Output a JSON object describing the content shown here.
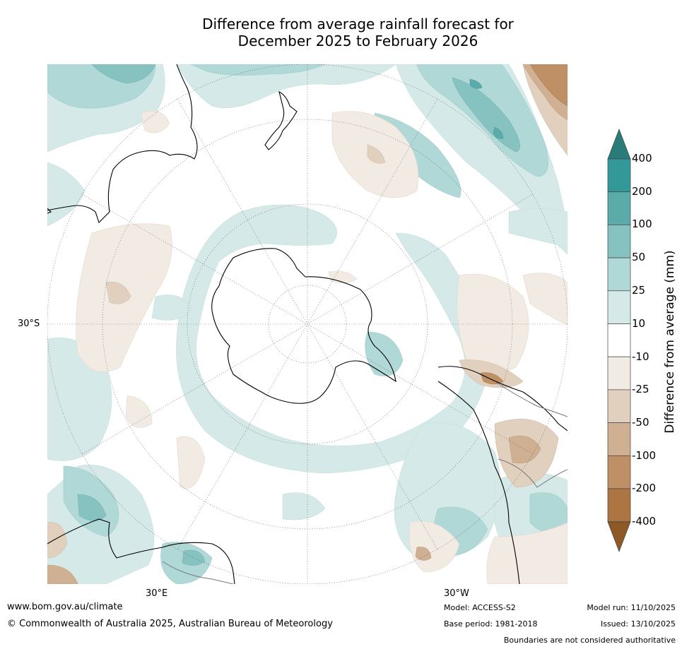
{
  "title": {
    "line1": "Difference from average rainfall forecast for",
    "line2": "December 2025 to February 2026"
  },
  "map": {
    "projection": "south-polar-stereographic",
    "lat_label": "30°S",
    "lon_labels": {
      "east": "30°E",
      "west": "30°W"
    }
  },
  "colorbar": {
    "title": "Difference from average (mm)",
    "ticks": [
      "400",
      "200",
      "100",
      "50",
      "25",
      "10",
      "-10",
      "-25",
      "-50",
      "-100",
      "-200",
      "-400"
    ],
    "colors": {
      "above_400": "#2a7c7b",
      "c200_400": "#339998",
      "c100_200": "#5aabaa",
      "c50_100": "#86c2c0",
      "c25_50": "#b0d8d6",
      "c10_25": "#d5eae8",
      "c_neutral": "#ffffff",
      "m10_25": "#f1ebe4",
      "m25_50": "#e2d0bf",
      "m50_100": "#d0b092",
      "m100_200": "#bf9066",
      "m200_400": "#ad7541",
      "below_400": "#8d5a25"
    }
  },
  "footer": {
    "website": "www.bom.gov.au/climate",
    "copyright": "© Commonwealth of Australia 2025, Australian Bureau of Meteorology",
    "model": "Model: ACCESS-S2",
    "base_period": "Base period: 1981-2018",
    "model_run": "Model run: 11/10/2025",
    "issued": "Issued: 13/10/2025",
    "disclaimer": "Boundaries are not considered authoritative"
  }
}
